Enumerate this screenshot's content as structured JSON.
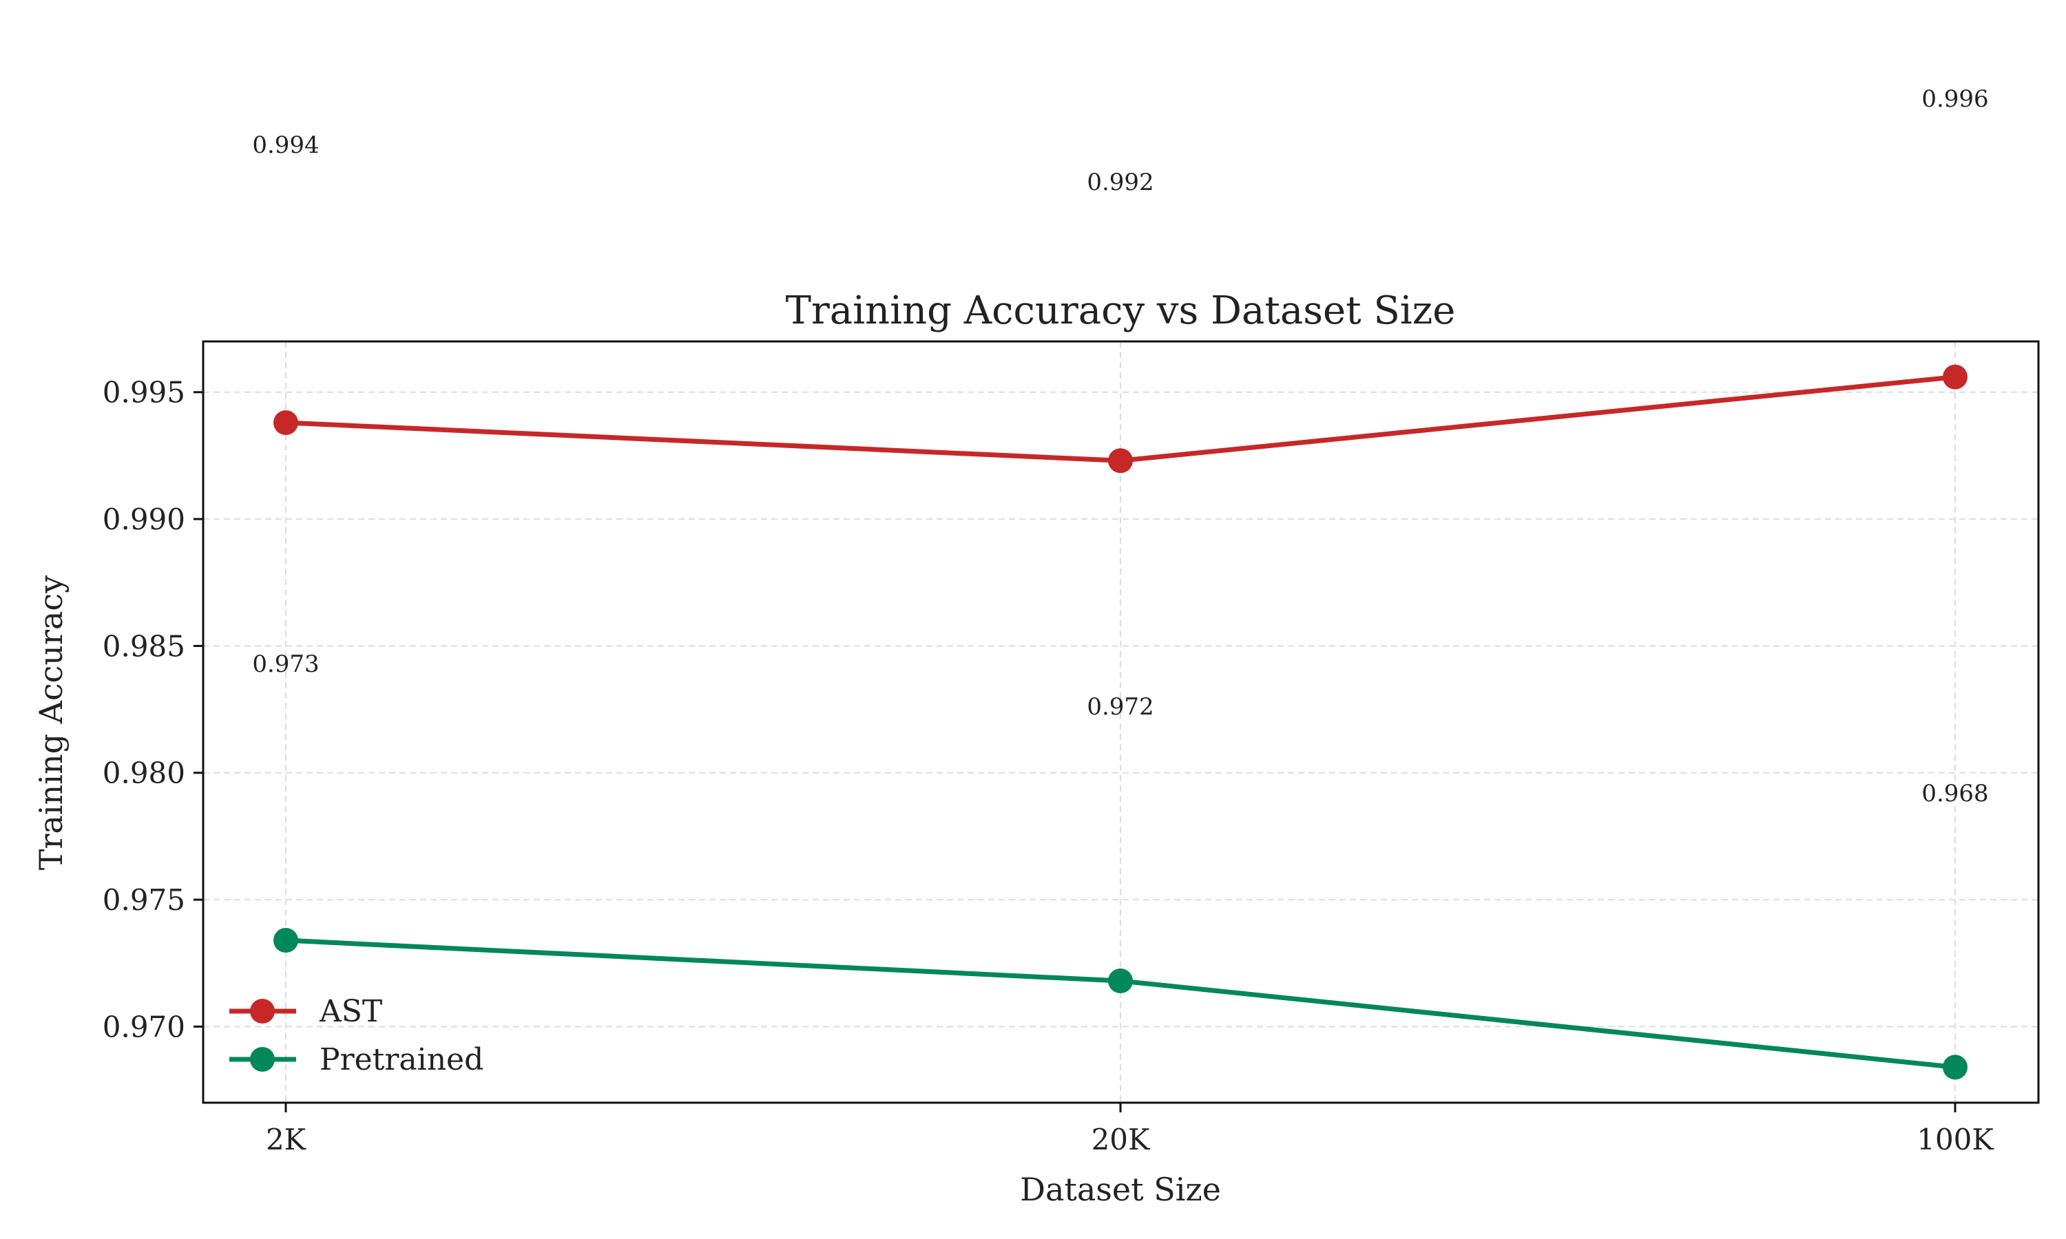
{
  "chart_data": {
    "type": "line",
    "title": "Training Accuracy vs Dataset Size",
    "xlabel": "Dataset Size",
    "ylabel": "Training Accuracy",
    "categories": [
      "2K",
      "20K",
      "100K"
    ],
    "yticks": [
      "0.970",
      "0.975",
      "0.980",
      "0.985",
      "0.990",
      "0.995"
    ],
    "ylim": [
      0.967,
      0.997
    ],
    "grid": true,
    "legend_position": "lower-left",
    "series": [
      {
        "name": "AST",
        "color": "#c62828",
        "values": [
          0.9938,
          0.9923,
          0.9956
        ],
        "labels": [
          "0.994",
          "0.992",
          "0.996"
        ]
      },
      {
        "name": "Pretrained",
        "color": "#00875a",
        "values": [
          0.9734,
          0.9718,
          0.9684
        ],
        "labels": [
          "0.973",
          "0.972",
          "0.968"
        ]
      }
    ]
  }
}
